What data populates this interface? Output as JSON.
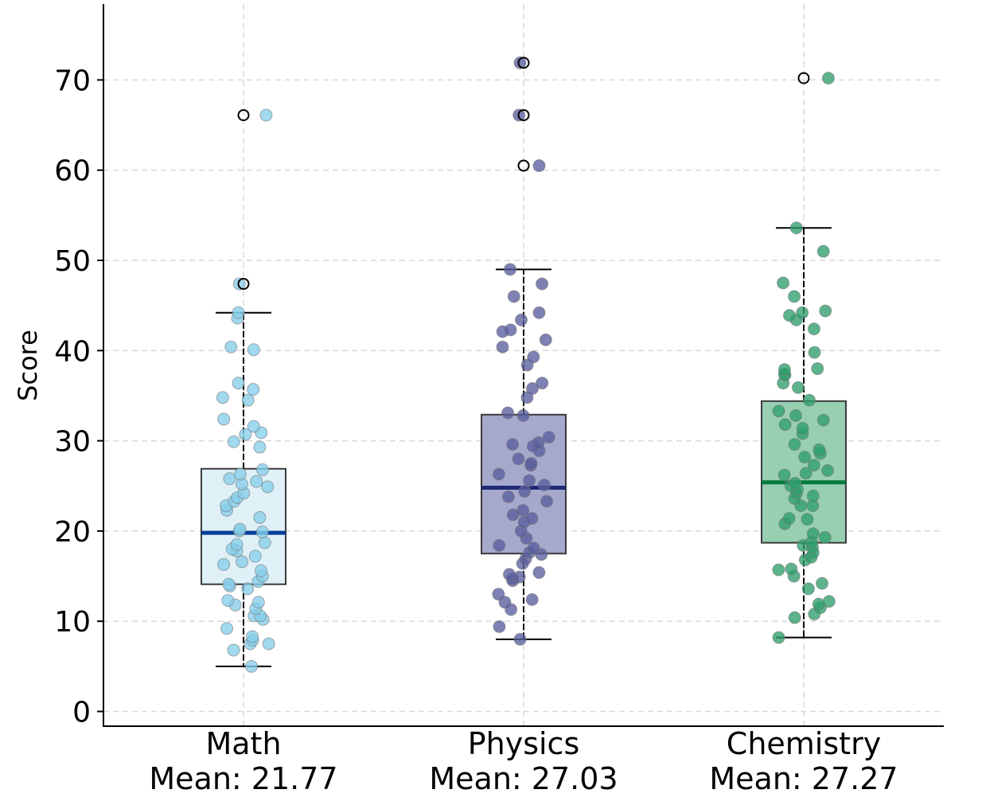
{
  "chart_data": {
    "type": "box",
    "ylabel": "Score",
    "ylim": [
      -2,
      79
    ],
    "yticks": [
      0,
      10,
      20,
      30,
      40,
      50,
      60,
      70
    ],
    "grid": true,
    "categories": [
      {
        "name": "Math",
        "mean_label": "Mean: 21.77",
        "color": "#87CEEB",
        "box_fill": "#DFF0F7",
        "median_color": "#003F9A",
        "stats": {
          "whisker_low": 5.0,
          "q1": 14.1,
          "median": 19.8,
          "q3": 26.9,
          "whisker_high": 44.2
        },
        "outliers": [
          47.4,
          66.1
        ],
        "points": [
          5.0,
          6.8,
          7.5,
          7.5,
          7.9,
          8.3,
          9.2,
          10.2,
          10.6,
          10.6,
          11.4,
          11.8,
          12.1,
          12.3,
          13.6,
          13.9,
          14.1,
          14.4,
          15.0,
          15.6,
          16.3,
          16.6,
          17.2,
          17.8,
          18.0,
          18.5,
          18.7,
          19.9,
          20.0,
          20.2,
          21.5,
          22.3,
          22.8,
          23.3,
          23.7,
          24.2,
          24.9,
          25.2,
          25.5,
          25.8,
          26.3,
          26.8,
          29.3,
          29.9,
          30.7,
          30.9,
          31.6,
          32.4,
          34.5,
          34.8,
          35.7,
          36.4,
          40.1,
          40.4,
          43.6,
          44.2,
          47.4,
          66.1
        ]
      },
      {
        "name": "Physics",
        "mean_label": "Mean: 27.03",
        "color": "#5A5E9E",
        "box_fill": "#A6A8CC",
        "median_color": "#1F2A77",
        "stats": {
          "whisker_low": 8.0,
          "q1": 17.5,
          "median": 24.8,
          "q3": 32.9,
          "whisker_high": 49.0
        },
        "outliers": [
          60.5,
          66.1,
          71.9
        ],
        "points": [
          8.0,
          9.4,
          11.3,
          12.1,
          12.4,
          13.0,
          14.5,
          14.7,
          14.9,
          15.2,
          15.4,
          16.4,
          16.9,
          17.4,
          17.6,
          18.1,
          18.4,
          19.2,
          20.0,
          21.0,
          21.4,
          21.8,
          22.3,
          23.3,
          23.8,
          24.4,
          25.1,
          25.6,
          26.3,
          27.3,
          27.5,
          28.0,
          28.9,
          29.4,
          29.6,
          29.8,
          30.4,
          32.8,
          33.1,
          34.8,
          35.8,
          36.4,
          38.4,
          39.3,
          40.4,
          41.2,
          42.1,
          42.3,
          43.4,
          44.2,
          46.0,
          47.4,
          49.0,
          60.5,
          66.1,
          71.9
        ]
      },
      {
        "name": "Chemistry",
        "mean_label": "Mean: 27.27",
        "color": "#2E9E6B",
        "box_fill": "#98CFB3",
        "median_color": "#007A3D",
        "stats": {
          "whisker_low": 8.2,
          "q1": 18.7,
          "median": 25.4,
          "q3": 34.4,
          "whisker_high": 53.6
        },
        "outliers": [
          70.2
        ],
        "points": [
          8.2,
          10.4,
          10.8,
          11.5,
          11.9,
          12.2,
          13.6,
          14.2,
          15.0,
          15.7,
          15.8,
          16.8,
          17.1,
          17.6,
          18.2,
          18.4,
          18.8,
          19.3,
          19.7,
          20.8,
          21.3,
          21.4,
          22.8,
          22.8,
          23.6,
          23.9,
          24.2,
          24.6,
          25.0,
          25.3,
          26.2,
          26.4,
          26.7,
          27.3,
          28.2,
          28.6,
          29.0,
          29.6,
          30.8,
          31.4,
          31.8,
          32.3,
          32.8,
          33.3,
          34.5,
          35.9,
          36.4,
          37.3,
          37.4,
          37.9,
          38.0,
          39.8,
          42.4,
          43.4,
          43.9,
          44.2,
          44.4,
          46.0,
          47.5,
          51.0,
          53.6,
          70.2
        ]
      }
    ]
  }
}
